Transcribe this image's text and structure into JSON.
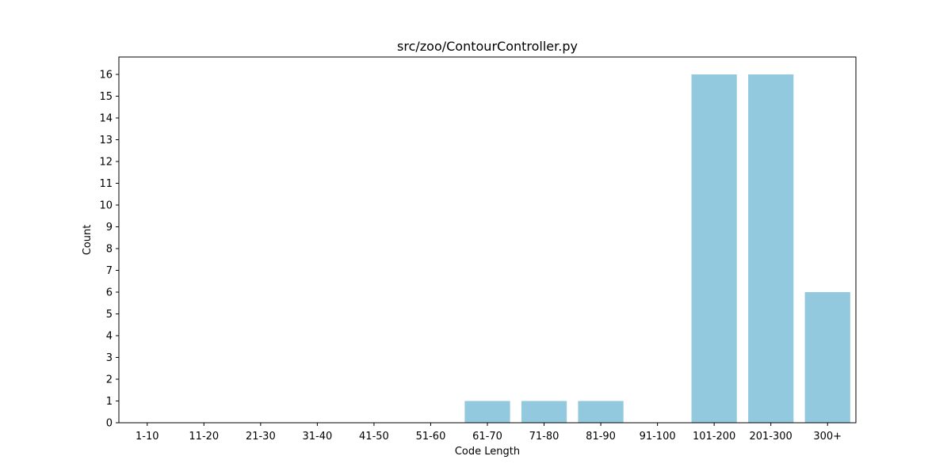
{
  "chart_data": {
    "type": "bar",
    "title": "src/zoo/ContourController.py",
    "xlabel": "Code Length",
    "ylabel": "Count",
    "categories": [
      "1-10",
      "11-20",
      "21-30",
      "31-40",
      "41-50",
      "51-60",
      "61-70",
      "71-80",
      "81-90",
      "91-100",
      "101-200",
      "201-300",
      "300+"
    ],
    "values": [
      0,
      0,
      0,
      0,
      0,
      0,
      1,
      1,
      1,
      0,
      16,
      16,
      6
    ],
    "ylim": [
      0,
      16.8
    ],
    "yticks": [
      0,
      1,
      2,
      3,
      4,
      5,
      6,
      7,
      8,
      9,
      10,
      11,
      12,
      13,
      14,
      15,
      16
    ],
    "bar_color": "#92c9de",
    "grid": false,
    "legend": "none"
  }
}
